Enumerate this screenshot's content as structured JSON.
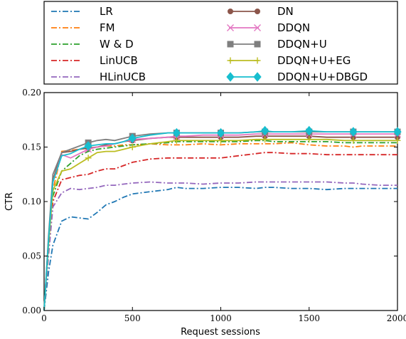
{
  "chart_data": {
    "type": "line",
    "title": "",
    "xlabel": "Request sessions",
    "ylabel": "CTR",
    "xlim": [
      0,
      2000
    ],
    "ylim": [
      0.0,
      0.2
    ],
    "x_ticks": [
      "0",
      "500",
      "1000",
      "1500",
      "2000"
    ],
    "y_ticks": [
      "0.00",
      "0.05",
      "0.10",
      "0.15",
      "0.20"
    ],
    "grid": false,
    "legend_placement": "top, two columns",
    "x": [
      0,
      25,
      50,
      100,
      150,
      200,
      250,
      300,
      350,
      400,
      450,
      500,
      600,
      700,
      750,
      800,
      900,
      1000,
      1100,
      1200,
      1250,
      1300,
      1400,
      1500,
      1600,
      1700,
      1750,
      1800,
      1900,
      2000
    ],
    "series": [
      {
        "name": "LR",
        "color": "#1f77b4",
        "dash": "8,3,2,3",
        "marker": "none",
        "values": [
          0.0,
          0.035,
          0.06,
          0.082,
          0.086,
          0.085,
          0.084,
          0.09,
          0.097,
          0.1,
          0.104,
          0.107,
          0.109,
          0.111,
          0.113,
          0.112,
          0.112,
          0.113,
          0.113,
          0.112,
          0.113,
          0.113,
          0.112,
          0.112,
          0.111,
          0.112,
          0.112,
          0.112,
          0.112,
          0.112
        ]
      },
      {
        "name": "FM",
        "color": "#ff7f0e",
        "dash": "8,3,2,3",
        "marker": "none",
        "values": [
          0.0,
          0.06,
          0.11,
          0.146,
          0.147,
          0.148,
          0.149,
          0.15,
          0.151,
          0.151,
          0.152,
          0.152,
          0.153,
          0.152,
          0.152,
          0.152,
          0.153,
          0.152,
          0.153,
          0.153,
          0.153,
          0.153,
          0.154,
          0.152,
          0.151,
          0.151,
          0.15,
          0.151,
          0.151,
          0.151
        ]
      },
      {
        "name": "W & D",
        "color": "#2ca02c",
        "dash": "8,3,2,3",
        "marker": "none",
        "values": [
          0.0,
          0.06,
          0.105,
          0.128,
          0.135,
          0.142,
          0.146,
          0.148,
          0.149,
          0.15,
          0.151,
          0.152,
          0.153,
          0.154,
          0.155,
          0.155,
          0.155,
          0.155,
          0.155,
          0.156,
          0.156,
          0.155,
          0.155,
          0.155,
          0.155,
          0.154,
          0.154,
          0.154,
          0.154,
          0.154
        ]
      },
      {
        "name": "LinUCB",
        "color": "#d62728",
        "dash": "8,3,2,3",
        "marker": "none",
        "values": [
          0.0,
          0.055,
          0.1,
          0.12,
          0.122,
          0.124,
          0.125,
          0.128,
          0.13,
          0.13,
          0.133,
          0.136,
          0.139,
          0.14,
          0.14,
          0.14,
          0.14,
          0.14,
          0.142,
          0.144,
          0.145,
          0.145,
          0.144,
          0.144,
          0.143,
          0.143,
          0.143,
          0.143,
          0.143,
          0.143
        ]
      },
      {
        "name": "HLinUCB",
        "color": "#9467bd",
        "dash": "8,3,2,3",
        "marker": "none",
        "values": [
          0.0,
          0.05,
          0.095,
          0.108,
          0.112,
          0.111,
          0.112,
          0.113,
          0.115,
          0.115,
          0.116,
          0.117,
          0.118,
          0.117,
          0.117,
          0.117,
          0.116,
          0.117,
          0.117,
          0.118,
          0.118,
          0.118,
          0.118,
          0.118,
          0.118,
          0.117,
          0.117,
          0.116,
          0.115,
          0.115
        ]
      },
      {
        "name": "DN",
        "color": "#8c564b",
        "dash": "",
        "marker": "circle",
        "values": [
          0.0,
          0.065,
          0.12,
          0.145,
          0.146,
          0.148,
          0.149,
          0.15,
          0.152,
          0.153,
          0.155,
          0.156,
          0.158,
          0.159,
          0.159,
          0.159,
          0.159,
          0.159,
          0.159,
          0.16,
          0.16,
          0.16,
          0.16,
          0.16,
          0.159,
          0.159,
          0.159,
          0.159,
          0.159,
          0.159
        ]
      },
      {
        "name": "DDQN",
        "color": "#e377c2",
        "dash": "",
        "marker": "x",
        "values": [
          0.0,
          0.065,
          0.118,
          0.143,
          0.14,
          0.144,
          0.148,
          0.15,
          0.151,
          0.153,
          0.155,
          0.157,
          0.158,
          0.159,
          0.16,
          0.16,
          0.161,
          0.161,
          0.161,
          0.162,
          0.162,
          0.162,
          0.162,
          0.162,
          0.162,
          0.162,
          0.162,
          0.162,
          0.162,
          0.162
        ]
      },
      {
        "name": "DDQN+U",
        "color": "#7f7f7f",
        "dash": "",
        "marker": "square",
        "values": [
          0.0,
          0.068,
          0.125,
          0.145,
          0.148,
          0.151,
          0.154,
          0.156,
          0.157,
          0.156,
          0.158,
          0.16,
          0.162,
          0.163,
          0.163,
          0.163,
          0.163,
          0.163,
          0.163,
          0.164,
          0.164,
          0.164,
          0.164,
          0.164,
          0.164,
          0.164,
          0.164,
          0.164,
          0.164,
          0.164
        ]
      },
      {
        "name": "DDQN+U+EG",
        "color": "#bcbd22",
        "dash": "",
        "marker": "plus",
        "values": [
          0.0,
          0.06,
          0.11,
          0.128,
          0.13,
          0.135,
          0.14,
          0.145,
          0.146,
          0.146,
          0.148,
          0.15,
          0.153,
          0.155,
          0.156,
          0.156,
          0.156,
          0.156,
          0.156,
          0.157,
          0.157,
          0.157,
          0.157,
          0.157,
          0.157,
          0.156,
          0.156,
          0.156,
          0.156,
          0.156
        ]
      },
      {
        "name": "DDQN+U+DBGD",
        "color": "#17becf",
        "dash": "",
        "marker": "diamond",
        "values": [
          0.0,
          0.064,
          0.118,
          0.142,
          0.144,
          0.148,
          0.151,
          0.152,
          0.153,
          0.153,
          0.155,
          0.158,
          0.161,
          0.163,
          0.163,
          0.163,
          0.163,
          0.163,
          0.163,
          0.164,
          0.165,
          0.164,
          0.164,
          0.165,
          0.164,
          0.164,
          0.164,
          0.164,
          0.164,
          0.164
        ]
      }
    ]
  }
}
